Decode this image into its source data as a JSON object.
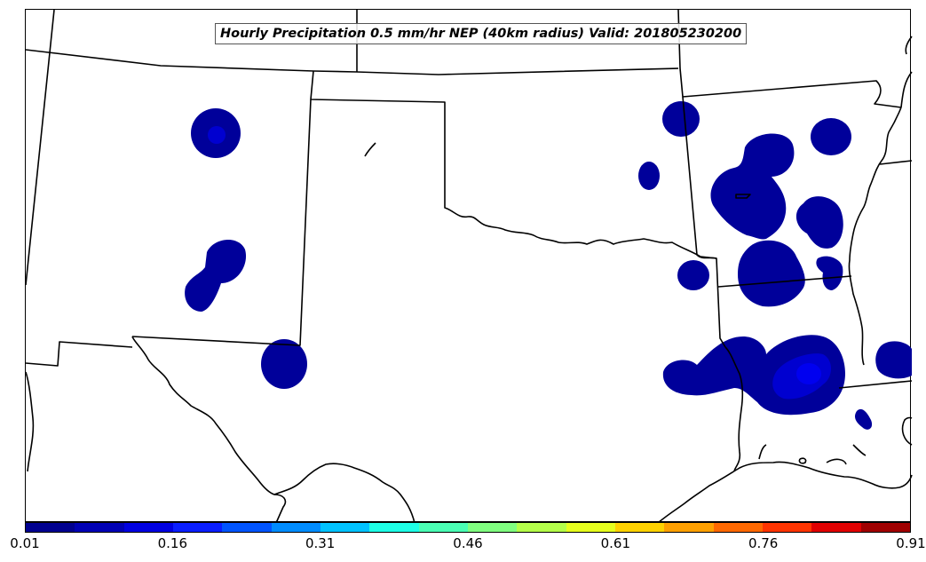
{
  "title": "Hourly Precipitation 0.5 mm/hr NEP (40km radius) Valid: 201805230200",
  "colorbar": {
    "colors": [
      "#00008f",
      "#0000b4",
      "#0000e0",
      "#0a1eff",
      "#0054ff",
      "#008cff",
      "#00c2ff",
      "#1effe6",
      "#4affb4",
      "#80ff80",
      "#b4ff4a",
      "#e6ff1e",
      "#ffd200",
      "#ffa000",
      "#ff6800",
      "#ff3400",
      "#e00000",
      "#a00000"
    ],
    "ticks": [
      "0.01",
      "0.16",
      "0.31",
      "0.46",
      "0.61",
      "0.76",
      "0.91"
    ]
  },
  "precip_colors": {
    "low": "#00009a",
    "mid": "#0000d0",
    "high": "#0000f0"
  }
}
